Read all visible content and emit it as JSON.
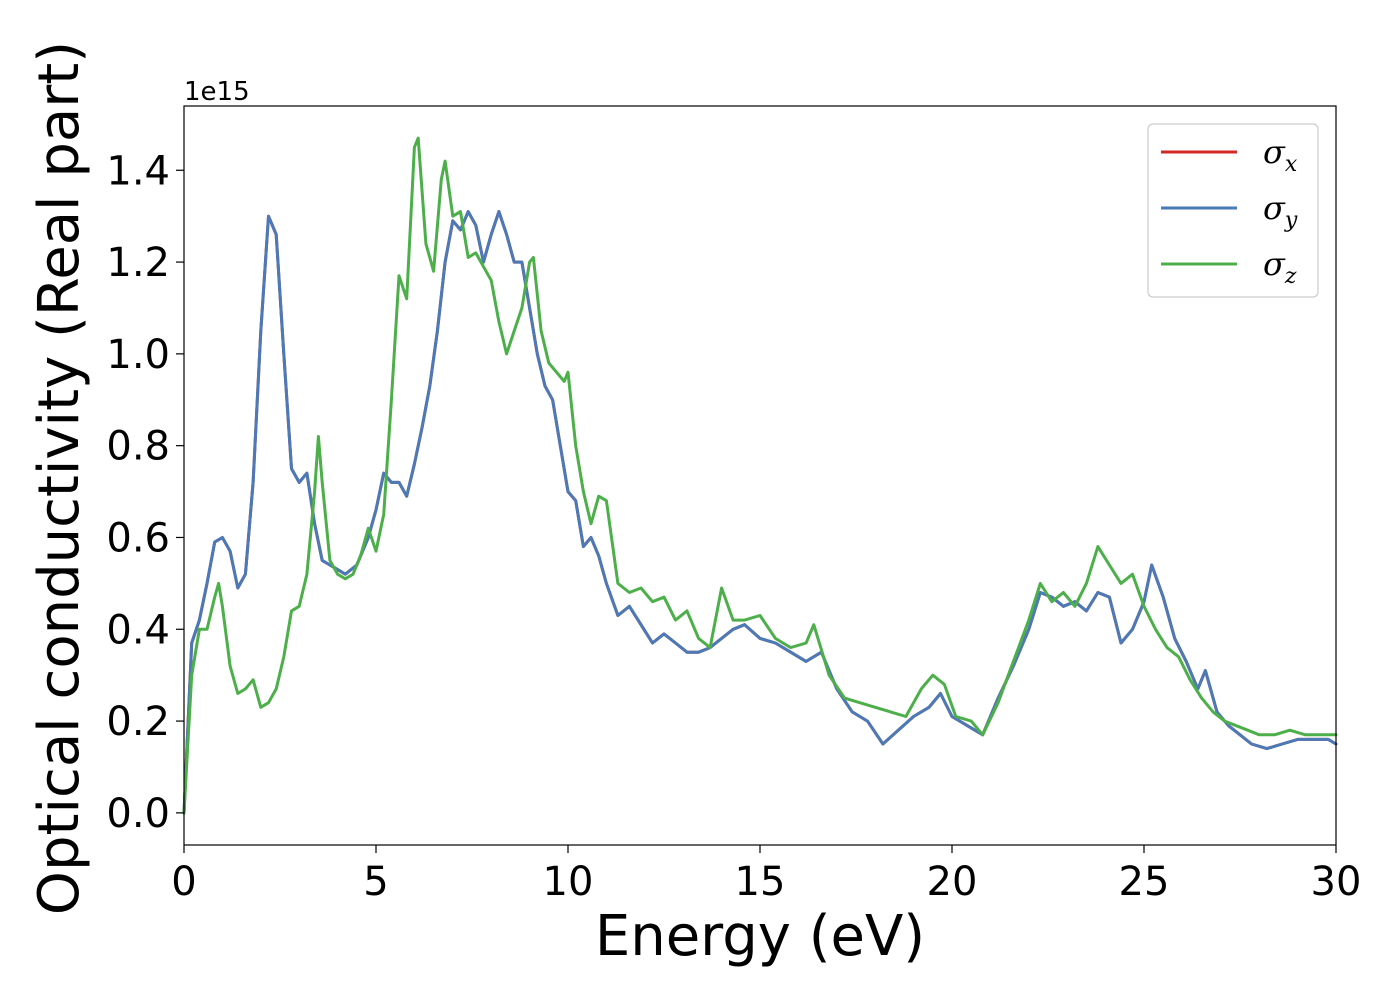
{
  "chart_data": {
    "type": "line",
    "xlabel": "Energy (eV)",
    "ylabel": "Optical conductivity (Real part)",
    "y_offset_text": "1e15",
    "y_scale": 1000000000000000.0,
    "xlim": [
      0,
      30
    ],
    "ylim": [
      -0.07,
      1.54
    ],
    "xticks": [
      0,
      5,
      10,
      15,
      20,
      25,
      30
    ],
    "xtick_labels": [
      "0",
      "5",
      "10",
      "15",
      "20",
      "25",
      "30"
    ],
    "yticks": [
      0.0,
      0.2,
      0.4,
      0.6,
      0.8,
      1.0,
      1.2,
      1.4
    ],
    "ytick_labels": [
      "0.0",
      "0.2",
      "0.4",
      "0.6",
      "0.8",
      "1.0",
      "1.2",
      "1.4"
    ],
    "grid": false,
    "legend_position": "top-right",
    "series": [
      {
        "name": "σx",
        "symbol": "σ",
        "subscript": "x",
        "color": "#d62728",
        "x": [
          0,
          0.2,
          0.4,
          0.6,
          0.8,
          1.0,
          1.2,
          1.4,
          1.6,
          1.8,
          2.0,
          2.2,
          2.4,
          2.6,
          2.8,
          3.0,
          3.2,
          3.4,
          3.6,
          3.8,
          4.0,
          4.2,
          4.5,
          4.8,
          5.0,
          5.2,
          5.4,
          5.6,
          5.8,
          6.0,
          6.2,
          6.4,
          6.6,
          6.8,
          7.0,
          7.2,
          7.4,
          7.6,
          7.8,
          8.0,
          8.2,
          8.4,
          8.6,
          8.8,
          9.0,
          9.2,
          9.4,
          9.6,
          9.8,
          10.0,
          10.2,
          10.4,
          10.6,
          10.8,
          11.0,
          11.3,
          11.6,
          11.9,
          12.2,
          12.5,
          12.8,
          13.1,
          13.4,
          13.7,
          14.0,
          14.3,
          14.6,
          15.0,
          15.4,
          15.8,
          16.2,
          16.6,
          17.0,
          17.4,
          17.8,
          18.2,
          18.6,
          19.0,
          19.4,
          19.7,
          20.0,
          20.4,
          20.8,
          21.2,
          21.6,
          22.0,
          22.3,
          22.6,
          22.9,
          23.2,
          23.5,
          23.8,
          24.1,
          24.4,
          24.7,
          25.0,
          25.2,
          25.5,
          25.8,
          26.1,
          26.4,
          26.6,
          26.9,
          27.2,
          27.5,
          27.8,
          28.2,
          28.6,
          29.0,
          29.4,
          29.8,
          30.0
        ],
        "y": [
          0.0,
          0.37,
          0.42,
          0.5,
          0.59,
          0.6,
          0.57,
          0.49,
          0.52,
          0.72,
          1.05,
          1.3,
          1.26,
          1.0,
          0.75,
          0.72,
          0.74,
          0.63,
          0.55,
          0.54,
          0.53,
          0.52,
          0.54,
          0.6,
          0.66,
          0.74,
          0.72,
          0.72,
          0.69,
          0.76,
          0.84,
          0.93,
          1.05,
          1.2,
          1.29,
          1.27,
          1.31,
          1.28,
          1.2,
          1.26,
          1.31,
          1.26,
          1.2,
          1.2,
          1.1,
          1.0,
          0.93,
          0.9,
          0.8,
          0.7,
          0.68,
          0.58,
          0.6,
          0.56,
          0.5,
          0.43,
          0.45,
          0.41,
          0.37,
          0.39,
          0.37,
          0.35,
          0.35,
          0.36,
          0.38,
          0.4,
          0.41,
          0.38,
          0.37,
          0.35,
          0.33,
          0.35,
          0.27,
          0.22,
          0.2,
          0.15,
          0.18,
          0.21,
          0.23,
          0.26,
          0.21,
          0.19,
          0.17,
          0.25,
          0.32,
          0.4,
          0.48,
          0.47,
          0.45,
          0.46,
          0.44,
          0.48,
          0.47,
          0.37,
          0.4,
          0.46,
          0.54,
          0.47,
          0.38,
          0.33,
          0.27,
          0.31,
          0.22,
          0.19,
          0.17,
          0.15,
          0.14,
          0.15,
          0.16,
          0.16,
          0.16,
          0.15
        ]
      },
      {
        "name": "σy",
        "symbol": "σ",
        "subscript": "y",
        "color": "#4a7ab7",
        "x": [
          0,
          0.2,
          0.4,
          0.6,
          0.8,
          1.0,
          1.2,
          1.4,
          1.6,
          1.8,
          2.0,
          2.2,
          2.4,
          2.6,
          2.8,
          3.0,
          3.2,
          3.4,
          3.6,
          3.8,
          4.0,
          4.2,
          4.5,
          4.8,
          5.0,
          5.2,
          5.4,
          5.6,
          5.8,
          6.0,
          6.2,
          6.4,
          6.6,
          6.8,
          7.0,
          7.2,
          7.4,
          7.6,
          7.8,
          8.0,
          8.2,
          8.4,
          8.6,
          8.8,
          9.0,
          9.2,
          9.4,
          9.6,
          9.8,
          10.0,
          10.2,
          10.4,
          10.6,
          10.8,
          11.0,
          11.3,
          11.6,
          11.9,
          12.2,
          12.5,
          12.8,
          13.1,
          13.4,
          13.7,
          14.0,
          14.3,
          14.6,
          15.0,
          15.4,
          15.8,
          16.2,
          16.6,
          17.0,
          17.4,
          17.8,
          18.2,
          18.6,
          19.0,
          19.4,
          19.7,
          20.0,
          20.4,
          20.8,
          21.2,
          21.6,
          22.0,
          22.3,
          22.6,
          22.9,
          23.2,
          23.5,
          23.8,
          24.1,
          24.4,
          24.7,
          25.0,
          25.2,
          25.5,
          25.8,
          26.1,
          26.4,
          26.6,
          26.9,
          27.2,
          27.5,
          27.8,
          28.2,
          28.6,
          29.0,
          29.4,
          29.8,
          30.0
        ],
        "y": [
          0.0,
          0.37,
          0.42,
          0.5,
          0.59,
          0.6,
          0.57,
          0.49,
          0.52,
          0.72,
          1.05,
          1.3,
          1.26,
          1.0,
          0.75,
          0.72,
          0.74,
          0.63,
          0.55,
          0.54,
          0.53,
          0.52,
          0.54,
          0.6,
          0.66,
          0.74,
          0.72,
          0.72,
          0.69,
          0.76,
          0.84,
          0.93,
          1.05,
          1.2,
          1.29,
          1.27,
          1.31,
          1.28,
          1.2,
          1.26,
          1.31,
          1.26,
          1.2,
          1.2,
          1.1,
          1.0,
          0.93,
          0.9,
          0.8,
          0.7,
          0.68,
          0.58,
          0.6,
          0.56,
          0.5,
          0.43,
          0.45,
          0.41,
          0.37,
          0.39,
          0.37,
          0.35,
          0.35,
          0.36,
          0.38,
          0.4,
          0.41,
          0.38,
          0.37,
          0.35,
          0.33,
          0.35,
          0.27,
          0.22,
          0.2,
          0.15,
          0.18,
          0.21,
          0.23,
          0.26,
          0.21,
          0.19,
          0.17,
          0.25,
          0.32,
          0.4,
          0.48,
          0.47,
          0.45,
          0.46,
          0.44,
          0.48,
          0.47,
          0.37,
          0.4,
          0.46,
          0.54,
          0.47,
          0.38,
          0.33,
          0.27,
          0.31,
          0.22,
          0.19,
          0.17,
          0.15,
          0.14,
          0.15,
          0.16,
          0.16,
          0.16,
          0.15
        ]
      },
      {
        "name": "σz",
        "symbol": "σ",
        "subscript": "z",
        "color": "#4daf4a",
        "x": [
          0,
          0.2,
          0.4,
          0.6,
          0.8,
          0.9,
          1.0,
          1.2,
          1.4,
          1.6,
          1.8,
          2.0,
          2.2,
          2.4,
          2.6,
          2.8,
          3.0,
          3.2,
          3.4,
          3.5,
          3.6,
          3.8,
          4.0,
          4.2,
          4.4,
          4.6,
          4.8,
          5.0,
          5.2,
          5.4,
          5.6,
          5.8,
          6.0,
          6.1,
          6.3,
          6.5,
          6.7,
          6.8,
          7.0,
          7.2,
          7.4,
          7.6,
          7.8,
          8.0,
          8.2,
          8.4,
          8.6,
          8.8,
          9.0,
          9.1,
          9.3,
          9.5,
          9.7,
          9.9,
          10.0,
          10.2,
          10.4,
          10.6,
          10.8,
          11.0,
          11.3,
          11.6,
          11.9,
          12.2,
          12.5,
          12.8,
          13.1,
          13.4,
          13.7,
          14.0,
          14.3,
          14.6,
          15.0,
          15.4,
          15.8,
          16.2,
          16.4,
          16.8,
          17.2,
          17.6,
          18.0,
          18.4,
          18.8,
          19.2,
          19.5,
          19.8,
          20.1,
          20.5,
          20.8,
          21.2,
          21.6,
          22.0,
          22.3,
          22.6,
          22.9,
          23.2,
          23.5,
          23.8,
          24.1,
          24.4,
          24.7,
          25.0,
          25.3,
          25.6,
          25.9,
          26.2,
          26.5,
          26.8,
          27.1,
          27.4,
          27.7,
          28.0,
          28.4,
          28.8,
          29.2,
          29.6,
          30.0
        ],
        "y": [
          0.0,
          0.3,
          0.4,
          0.4,
          0.47,
          0.5,
          0.45,
          0.32,
          0.26,
          0.27,
          0.29,
          0.23,
          0.24,
          0.27,
          0.34,
          0.44,
          0.45,
          0.52,
          0.7,
          0.82,
          0.72,
          0.55,
          0.52,
          0.51,
          0.52,
          0.56,
          0.62,
          0.57,
          0.65,
          0.9,
          1.17,
          1.12,
          1.45,
          1.47,
          1.24,
          1.18,
          1.38,
          1.42,
          1.3,
          1.31,
          1.21,
          1.22,
          1.19,
          1.16,
          1.07,
          1.0,
          1.05,
          1.1,
          1.2,
          1.21,
          1.05,
          0.98,
          0.96,
          0.94,
          0.96,
          0.8,
          0.7,
          0.63,
          0.69,
          0.68,
          0.5,
          0.48,
          0.49,
          0.46,
          0.47,
          0.42,
          0.44,
          0.38,
          0.36,
          0.49,
          0.42,
          0.42,
          0.43,
          0.38,
          0.36,
          0.37,
          0.41,
          0.3,
          0.25,
          0.24,
          0.23,
          0.22,
          0.21,
          0.27,
          0.3,
          0.28,
          0.21,
          0.2,
          0.17,
          0.24,
          0.33,
          0.42,
          0.5,
          0.46,
          0.48,
          0.45,
          0.5,
          0.58,
          0.54,
          0.5,
          0.52,
          0.45,
          0.4,
          0.36,
          0.34,
          0.29,
          0.25,
          0.22,
          0.2,
          0.19,
          0.18,
          0.17,
          0.17,
          0.18,
          0.17,
          0.17,
          0.17
        ]
      }
    ]
  }
}
